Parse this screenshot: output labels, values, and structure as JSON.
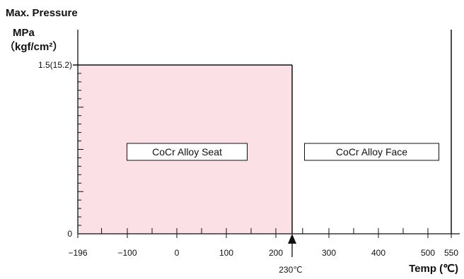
{
  "chart_data": {
    "type": "area",
    "title": "Max. Pressure",
    "ylabel_line1": "MPa",
    "ylabel_line2": "（kgf/cm²）",
    "xlabel": "Temp (℃)",
    "xlim": [
      -196,
      550
    ],
    "ylim": [
      0,
      1.5
    ],
    "x_ticks": [
      {
        "value": -196,
        "label": "−196"
      },
      {
        "value": -100,
        "label": "−100"
      },
      {
        "value": 0,
        "label": "0"
      },
      {
        "value": 100,
        "label": "100"
      },
      {
        "value": 200,
        "label": "200"
      },
      {
        "value": 300,
        "label": "300"
      },
      {
        "value": 400,
        "label": "400"
      },
      {
        "value": 500,
        "label": "500"
      },
      {
        "value": 550,
        "label": "550"
      }
    ],
    "y_ticks": [
      {
        "value": 0,
        "label": "0"
      },
      {
        "value": 1.5,
        "label": "1.5(15.2)"
      }
    ],
    "regions": [
      {
        "label": "CoCr Alloy Seat",
        "x_from": -196,
        "x_to": 230,
        "max_pressure": 1.5,
        "color": "#fbe0e5"
      },
      {
        "label": "CoCr Alloy Face",
        "x_from": 230,
        "x_to": 550,
        "max_pressure": 0
      }
    ],
    "marker": {
      "value": 230,
      "label": "230℃"
    },
    "grid": false
  }
}
